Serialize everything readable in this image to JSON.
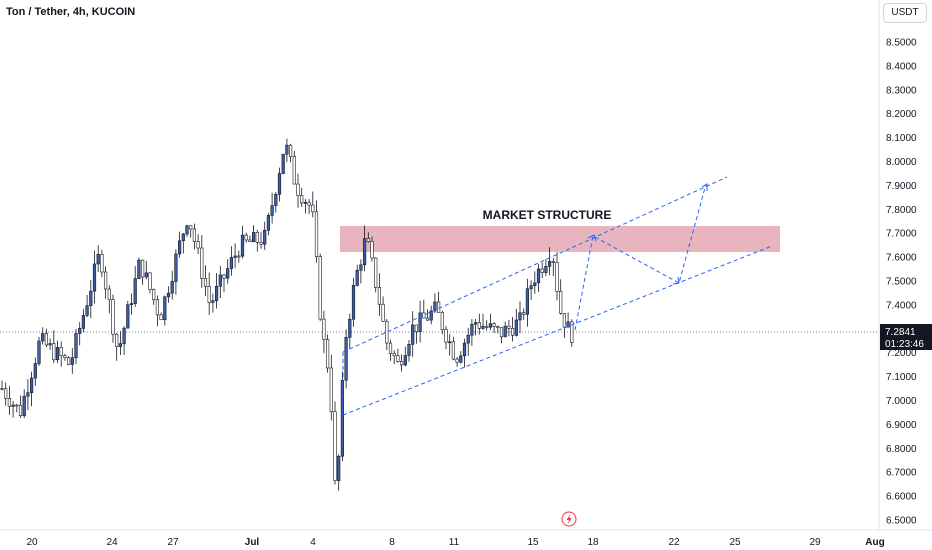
{
  "header": {
    "symbol_title": "Ton / Tether, 4h, KUCOIN",
    "currency_button": "USDT"
  },
  "price_scale": {
    "ticks": [
      "8.5000",
      "8.4000",
      "8.3000",
      "8.2000",
      "8.1000",
      "8.0000",
      "7.9000",
      "7.8000",
      "7.7000",
      "7.6000",
      "7.5000",
      "7.4000",
      "7.3000",
      "7.2000",
      "7.1000",
      "7.0000",
      "6.9000",
      "6.8000",
      "6.7000",
      "6.6000",
      "6.5000"
    ],
    "last_price": "7.2841",
    "countdown": "01:23:46"
  },
  "time_axis": {
    "ticks": [
      "20",
      "24",
      "27",
      "Jul",
      "4",
      "8",
      "11",
      "15",
      "18",
      "22",
      "25",
      "29",
      "Aug"
    ]
  },
  "annotations": {
    "zone_label": "MARKET STRUCTURE"
  },
  "colors": {
    "bull_candle": "#3b5fa8",
    "bear_candle": "#ffffff",
    "wick": "#131722",
    "zone_fill": "#e4a7b1",
    "channel_line": "#2962ff",
    "last_price_bg": "#131722"
  },
  "icons": {
    "replay": "lightning-icon"
  },
  "chart_data": {
    "type": "candlestick",
    "symbol": "Ton / Tether",
    "interval": "4h",
    "exchange": "KUCOIN",
    "y_range": [
      6.49,
      8.55
    ],
    "x_labels": [
      "20",
      "24",
      "27",
      "Jul",
      "4",
      "8",
      "11",
      "15",
      "18",
      "22",
      "25",
      "29",
      "Aug"
    ],
    "last_price": 7.2841,
    "zone": {
      "label": "MARKET STRUCTURE",
      "from": 7.62,
      "to": 7.73
    },
    "key_closes": [
      {
        "label": "20",
        "price": 7.0
      },
      {
        "label": "24",
        "price": 7.55
      },
      {
        "label": "27",
        "price": 7.7
      },
      {
        "label": "Jul",
        "price": 7.65
      },
      {
        "label": "Jul",
        "price": 8.05
      },
      {
        "label": "4",
        "price": 7.3
      },
      {
        "label": "4",
        "price": 6.55
      },
      {
        "label": "4",
        "price": 7.6
      },
      {
        "label": "8",
        "price": 7.2
      },
      {
        "label": "11",
        "price": 7.25
      },
      {
        "label": "15",
        "price": 7.64
      },
      {
        "label": "15",
        "price": 7.28
      }
    ]
  }
}
